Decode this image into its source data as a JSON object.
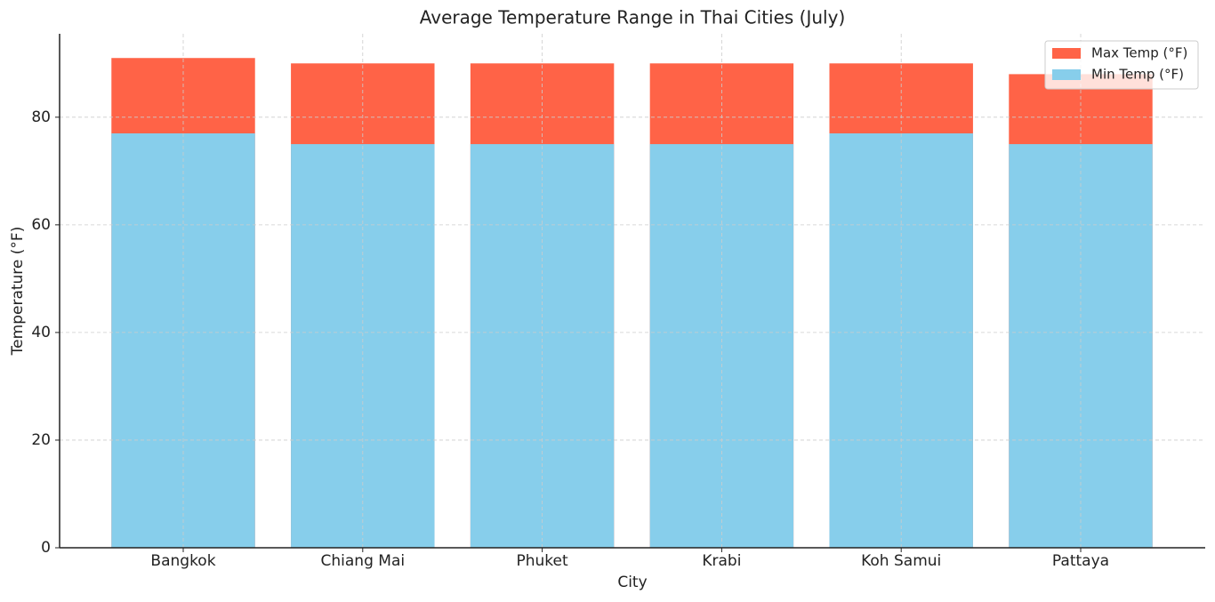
{
  "chart_data": {
    "type": "bar",
    "barmode": "overlay",
    "title": "Average Temperature Range in Thai Cities (July)",
    "x_label": "City",
    "y_label": "Temperature (°F)",
    "categories": [
      "Bangkok",
      "Chiang Mai",
      "Phuket",
      "Krabi",
      "Koh Samui",
      "Pattaya"
    ],
    "series": [
      {
        "name": "Max Temp (°F)",
        "color": "#ff6347",
        "values": [
          91,
          90,
          90,
          90,
          90,
          88
        ]
      },
      {
        "name": "Min Temp (°F)",
        "color": "#87ceeb",
        "values": [
          77,
          75,
          75,
          75,
          77,
          75
        ]
      }
    ],
    "ylim": [
      0,
      95.5
    ],
    "yticks": [
      0,
      20,
      40,
      60,
      80
    ],
    "grid": true,
    "legend": "upper right"
  }
}
